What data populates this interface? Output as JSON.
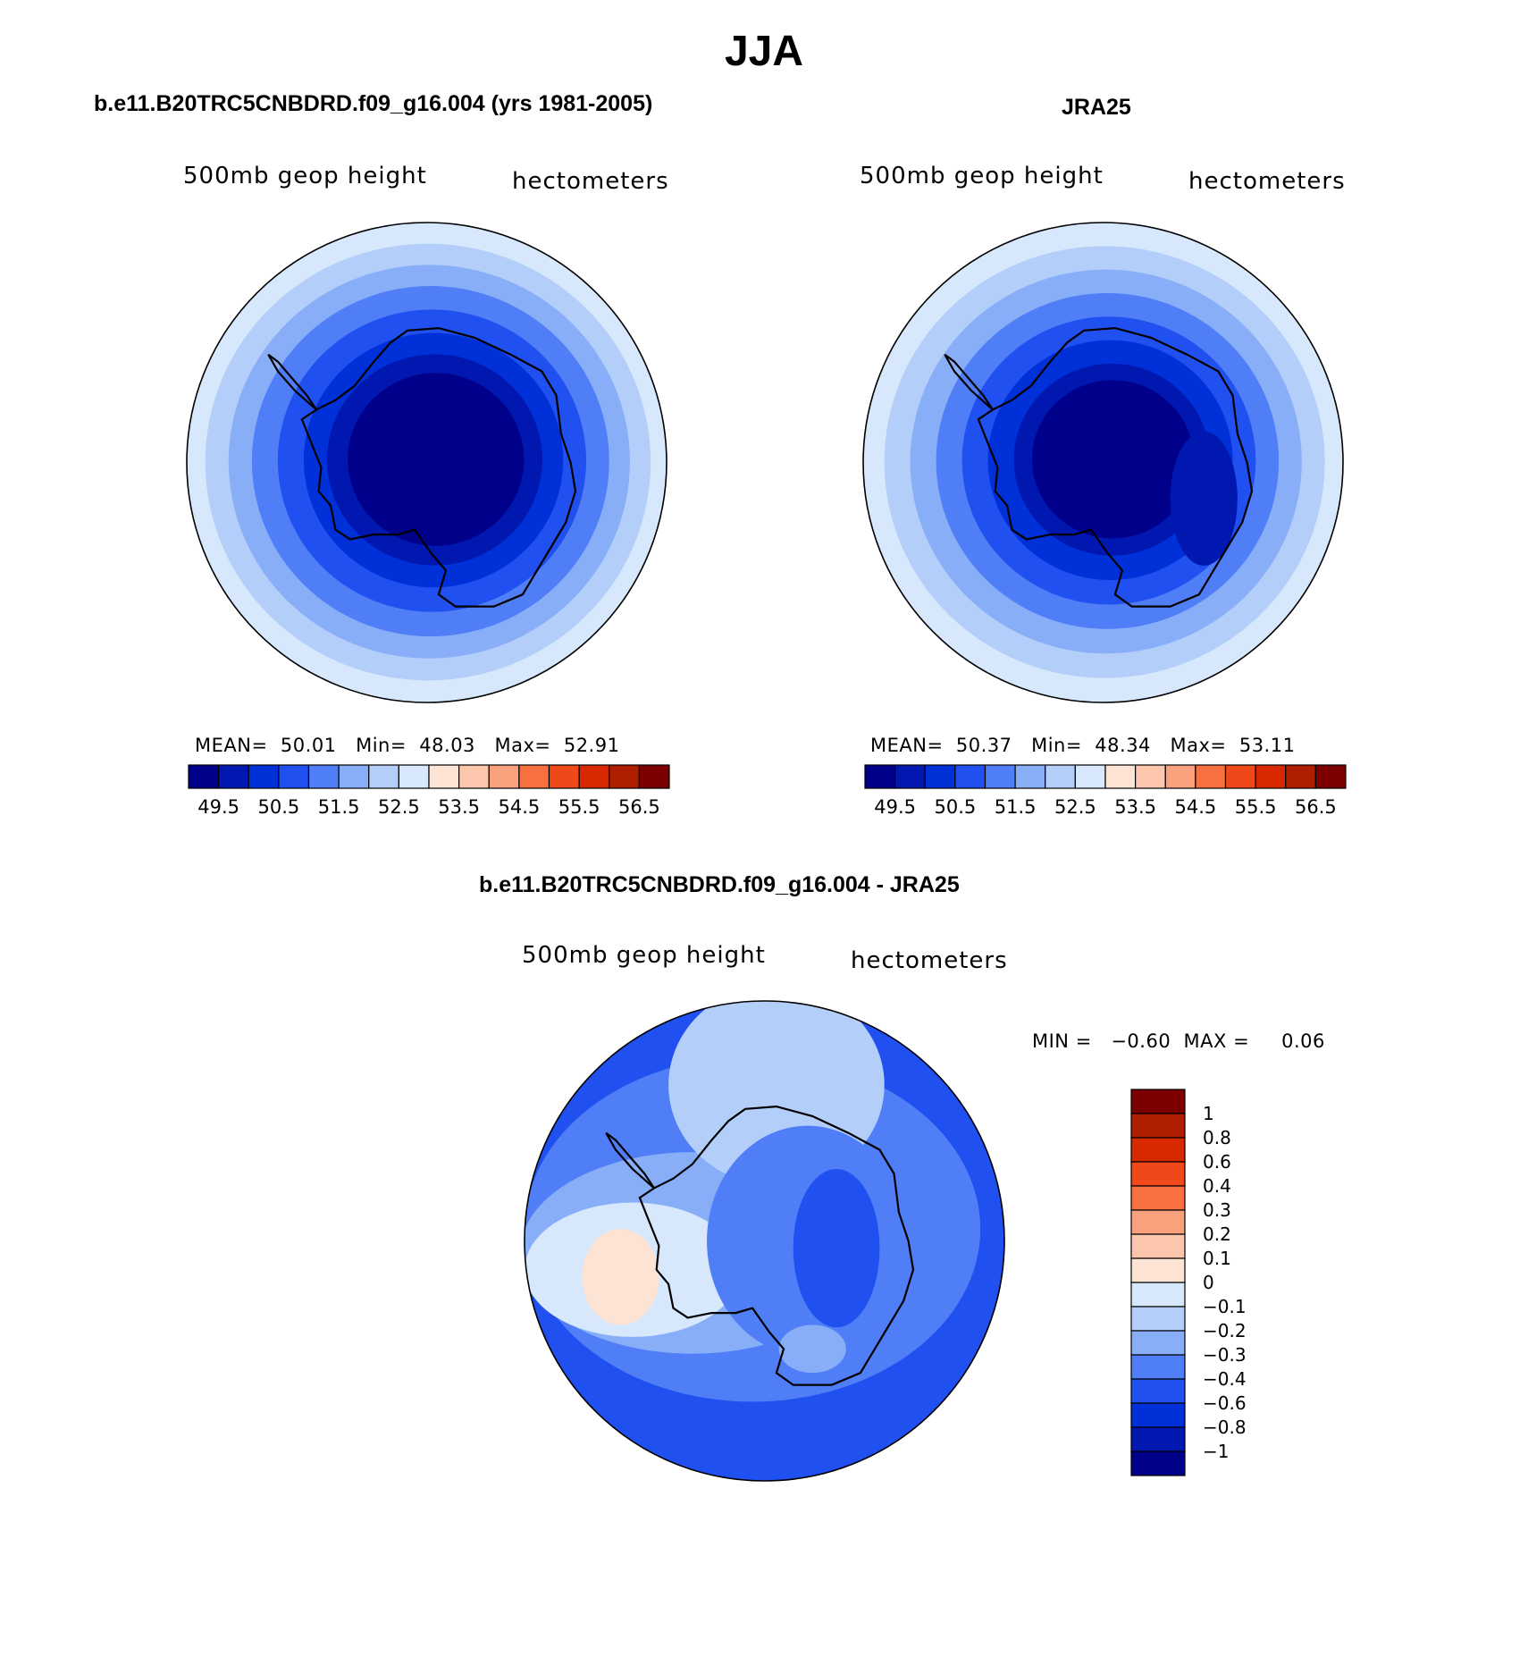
{
  "figure": {
    "title": "JJA",
    "bottom_title": "b.e11.B20TRC5CNBDRD.f09_g16.004 - JRA25"
  },
  "colors": {
    "abs_palette": [
      "#00008a",
      "#0018b0",
      "#0030d8",
      "#2050f0",
      "#4f7ef6",
      "#88aef8",
      "#b4cefa",
      "#d8e8fc",
      "#fde3d3",
      "#fcc6ad",
      "#f9a07d",
      "#f8703f",
      "#f04818",
      "#d82800",
      "#b01e00",
      "#7c0000"
    ],
    "diff_palette": [
      "#00008a",
      "#0018b0",
      "#0030d8",
      "#2050f0",
      "#4f7ef6",
      "#88aef8",
      "#b4cefa",
      "#d8e8fc",
      "#fde3d3",
      "#fcc6ad",
      "#f9a07d",
      "#f8703f",
      "#f04818",
      "#d82800",
      "#b01e00",
      "#7c0000"
    ]
  },
  "chart_data": [
    {
      "type": "heatmap",
      "projection": "south polar stereographic",
      "panel_title": "b.e11.B20TRC5CNBDRD.f09_g16.004 (yrs 1981-2005)",
      "left_label": "500mb geop height",
      "right_label": "hectometers",
      "mean_label": "MEAN=",
      "mean": "50.01",
      "min_label": "Min=",
      "min": "48.03",
      "max_label": "Max=",
      "max": "52.91",
      "colorbar": {
        "orientation": "horizontal",
        "tick_labels": [
          "49.5",
          "50.5",
          "51.5",
          "52.5",
          "53.5",
          "54.5",
          "55.5",
          "56.5"
        ],
        "levels": [
          49.5,
          50,
          50.5,
          51,
          51.5,
          52,
          52.5,
          53,
          53.5,
          54,
          54.5,
          55,
          55.5,
          56,
          56.5
        ]
      },
      "rings": [
        {
          "r": 1.0,
          "level_index": 7
        },
        {
          "r": 0.91,
          "level_index": 6
        },
        {
          "r": 0.82,
          "level_index": 5
        },
        {
          "r": 0.73,
          "level_index": 4
        },
        {
          "r": 0.63,
          "level_index": 3
        },
        {
          "r": 0.53,
          "level_index": 2
        },
        {
          "r": 0.44,
          "level_index": 1
        },
        {
          "r": 0.36,
          "level_index": 0
        }
      ]
    },
    {
      "type": "heatmap",
      "projection": "south polar stereographic",
      "panel_title": "JRA25",
      "left_label": "500mb geop height",
      "right_label": "hectometers",
      "mean_label": "MEAN=",
      "mean": "50.37",
      "min_label": "Min=",
      "min": "48.34",
      "max_label": "Max=",
      "max": "53.11",
      "colorbar": {
        "orientation": "horizontal",
        "tick_labels": [
          "49.5",
          "50.5",
          "51.5",
          "52.5",
          "53.5",
          "54.5",
          "55.5",
          "56.5"
        ],
        "levels": [
          49.5,
          50,
          50.5,
          51,
          51.5,
          52,
          52.5,
          53,
          53.5,
          54,
          54.5,
          55,
          55.5,
          56,
          56.5
        ]
      },
      "rings": [
        {
          "r": 1.0,
          "level_index": 7
        },
        {
          "r": 0.9,
          "level_index": 6
        },
        {
          "r": 0.8,
          "level_index": 5
        },
        {
          "r": 0.7,
          "level_index": 4
        },
        {
          "r": 0.6,
          "level_index": 3
        },
        {
          "r": 0.5,
          "level_index": 2
        },
        {
          "r": 0.4,
          "level_index": 1
        },
        {
          "r": 0.33,
          "level_index": 0
        }
      ]
    },
    {
      "type": "heatmap",
      "projection": "south polar stereographic",
      "panel_title": "b.e11.B20TRC5CNBDRD.f09_g16.004 - JRA25",
      "left_label": "500mb geop height",
      "right_label": "hectometers",
      "min_label": "MIN =",
      "min": "−0.60",
      "max_label": "MAX =",
      "max": "0.06",
      "colorbar": {
        "orientation": "vertical",
        "tick_labels": [
          "1",
          "0.8",
          "0.6",
          "0.4",
          "0.3",
          "0.2",
          "0.1",
          "0",
          "−0.1",
          "−0.2",
          "−0.3",
          "−0.4",
          "−0.6",
          "−0.8",
          "−1"
        ],
        "levels": [
          1,
          0.8,
          0.6,
          0.4,
          0.3,
          0.2,
          0.1,
          0,
          -0.1,
          -0.2,
          -0.3,
          -0.4,
          -0.6,
          -0.8,
          -1
        ]
      }
    }
  ]
}
